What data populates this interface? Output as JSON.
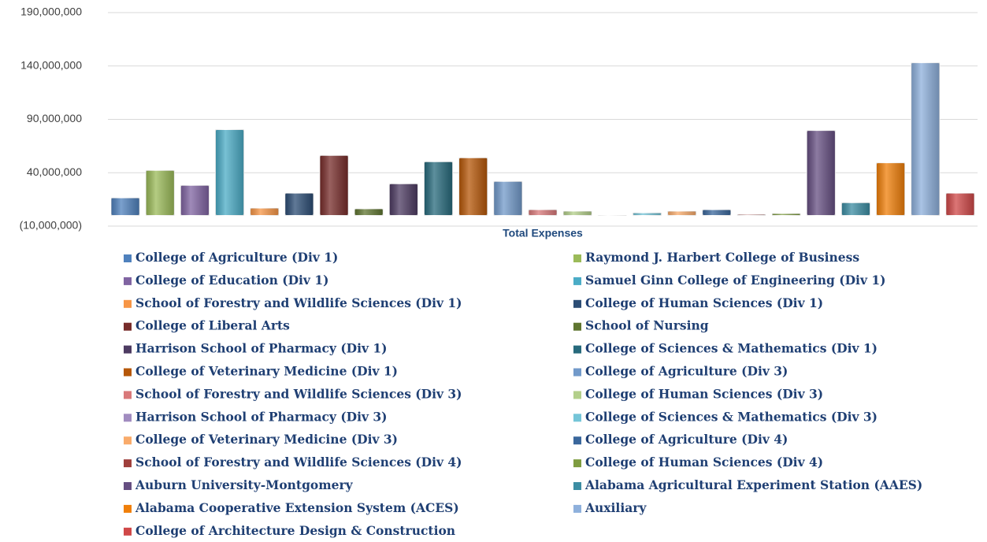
{
  "chart_data": {
    "type": "bar",
    "categories": [
      "Total Expenses"
    ],
    "ylim": [
      -10000000,
      190000000
    ],
    "yticks": [
      {
        "value": -10000000,
        "label": "(10,000,000)"
      },
      {
        "value": 40000000,
        "label": "40,000,000"
      },
      {
        "value": 90000000,
        "label": "90,000,000"
      },
      {
        "value": 140000000,
        "label": "140,000,000"
      },
      {
        "value": 190000000,
        "label": "190,000,000"
      }
    ],
    "grid": true,
    "series": [
      {
        "name": "College of Agriculture (Div 1)",
        "color": "#4f81bd",
        "values": [
          16500000
        ]
      },
      {
        "name": "Raymond J. Harbert College of Business",
        "color": "#9bbb59",
        "values": [
          42200000
        ]
      },
      {
        "name": "College of Education (Div 1)",
        "color": "#8064a2",
        "values": [
          28200000
        ]
      },
      {
        "name": "Samuel Ginn College of Engineering (Div 1)",
        "color": "#4bacc6",
        "values": [
          80400000
        ]
      },
      {
        "name": "School of Forestry and Wildlife Sciences (Div 1)",
        "color": "#f79646",
        "values": [
          6900000
        ]
      },
      {
        "name": "College of Human Sciences (Div 1)",
        "color": "#2c4d75",
        "values": [
          20900000
        ]
      },
      {
        "name": "College of Liberal Arts",
        "color": "#772c2a",
        "values": [
          56200000
        ]
      },
      {
        "name": "School of Nursing",
        "color": "#5f7530",
        "values": [
          6200000
        ]
      },
      {
        "name": "Harrison School of Pharmacy (Div 1)",
        "color": "#4d3b62",
        "values": [
          29700000
        ]
      },
      {
        "name": "College of Sciences & Mathematics (Div 1)",
        "color": "#276a7c",
        "values": [
          50300000
        ]
      },
      {
        "name": "College of Veterinary Medicine (Div 1)",
        "color": "#b65708",
        "values": [
          54000000
        ]
      },
      {
        "name": "College of Agriculture (Div 3)",
        "color": "#729aca",
        "values": [
          31900000
        ]
      },
      {
        "name": "School of Forestry and Wildlife Sciences (Div 3)",
        "color": "#d9797a",
        "values": [
          5400000
        ]
      },
      {
        "name": "College of Human Sciences (Div 3)",
        "color": "#b3cf8a",
        "values": [
          4000000
        ]
      },
      {
        "name": "Harrison School of Pharmacy (Div 3)",
        "color": "#a18cc0",
        "values": [
          300000
        ]
      },
      {
        "name": "College of Sciences & Mathematics (Div 3)",
        "color": "#75c5d8",
        "values": [
          2500000
        ]
      },
      {
        "name": "College of Veterinary Medicine (Div 3)",
        "color": "#f9ab6b",
        "values": [
          4000000
        ]
      },
      {
        "name": "College of Agriculture (Div 4)",
        "color": "#3a679c",
        "values": [
          5400000
        ]
      },
      {
        "name": "School of Forestry and Wildlife Sciences (Div 4)",
        "color": "#9f3f3c",
        "values": [
          1000000
        ]
      },
      {
        "name": "College of Human Sciences (Div 4)",
        "color": "#7e9c40",
        "values": [
          1800000
        ]
      },
      {
        "name": "Auburn University-Montgomery",
        "color": "#664f82",
        "values": [
          79600000
        ]
      },
      {
        "name": "Alabama Agricultural Experiment Station (AAES)",
        "color": "#3c8da3",
        "values": [
          12000000
        ]
      },
      {
        "name": "Alabama Cooperative Extension System (ACES)",
        "color": "#f07f09",
        "values": [
          49300000
        ]
      },
      {
        "name": "Auxiliary",
        "color": "#8eb0dc",
        "values": [
          143000000
        ]
      },
      {
        "name": "College of Architecture Design & Construction",
        "color": "#d04848",
        "values": [
          20900000
        ]
      }
    ]
  }
}
